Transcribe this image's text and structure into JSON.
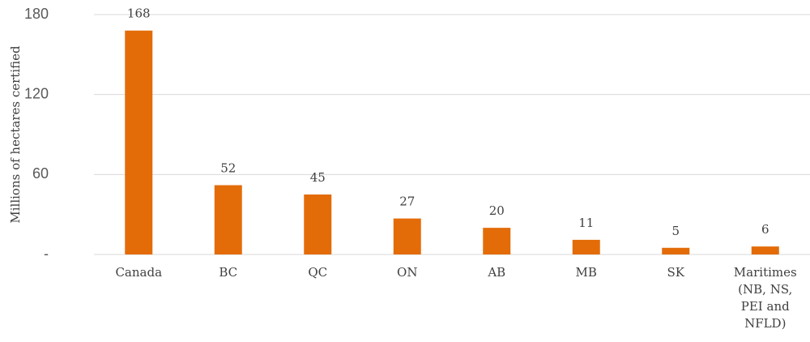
{
  "chart_data": {
    "type": "bar",
    "y_label": "Millions of hectares certified",
    "categories": [
      "Canada",
      "BC",
      "QC",
      "ON",
      "AB",
      "MB",
      "SK",
      "Maritimes (NB, NS, PEI and NFLD)"
    ],
    "values": [
      168,
      52,
      45,
      27,
      20,
      11,
      5,
      6
    ],
    "color": "#e36c09",
    "ylim": [
      0,
      180
    ],
    "yticks": [
      {
        "value": 0,
        "label": "-"
      },
      60,
      120,
      180
    ],
    "grid": true
  }
}
